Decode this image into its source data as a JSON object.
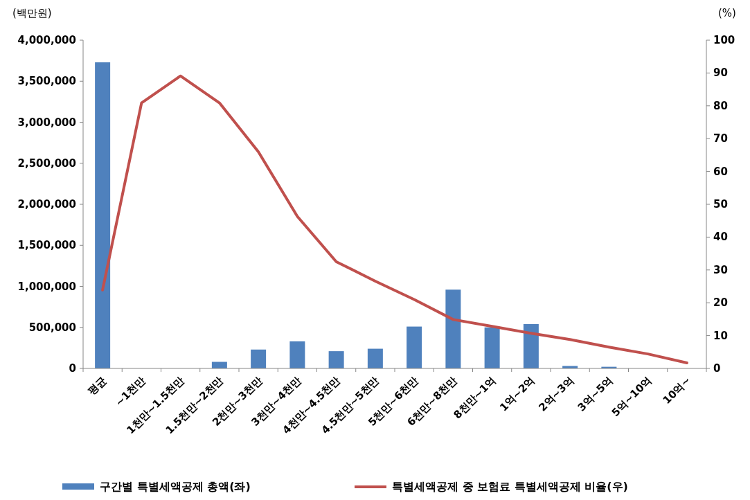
{
  "chart_data": {
    "type": "bar",
    "categories": [
      "평균",
      "~1천만",
      "1천만~1.5천만",
      "1.5천만~2천만",
      "2천만~3천만",
      "3천만~4천만",
      "4천만~4.5천만",
      "4.5천만~5천만",
      "5천만~6천만",
      "6천만~8천만",
      "8천만~1억",
      "1억~2억",
      "2억~3억",
      "3억~5억",
      "5억~10억",
      "10억~"
    ],
    "series": [
      {
        "name": "구간별 특별세액공제 총액(좌)",
        "color": "#4f81bd",
        "values": [
          3730000,
          0,
          0,
          80000,
          230000,
          330000,
          210000,
          240000,
          510000,
          960000,
          500000,
          540000,
          30000,
          20000,
          0,
          0
        ]
      },
      {
        "name": "특별세액공제 중 보험료 특별세액공제 비율(우)",
        "type": "line",
        "axis": "y2",
        "color": "#c0504d",
        "values": [
          23.9,
          80.9,
          89.1,
          80.9,
          66.0,
          46.3,
          32.5,
          26.6,
          21.0,
          14.9,
          12.8,
          10.7,
          8.8,
          6.5,
          4.4,
          1.7
        ]
      }
    ],
    "ylabel": "(백만원)",
    "y2label": "(%)",
    "ylim": [
      0,
      4000000
    ],
    "yticks": [
      0,
      {
        "value": 500000,
        "label": "500,000"
      },
      {
        "value": 1000000,
        "label": "1,000,000"
      },
      {
        "value": 1500000,
        "label": "1,500,000"
      },
      {
        "value": 2000000,
        "label": "2,000,000"
      },
      {
        "value": 2500000,
        "label": "2,500,000"
      },
      {
        "value": 3000000,
        "label": "3,000,000"
      },
      {
        "value": 3500000,
        "label": "3,500,000"
      },
      {
        "value": 4000000,
        "label": "4,000,000"
      }
    ],
    "y2lim": [
      0,
      100
    ],
    "y2ticks": [
      0,
      10,
      20,
      30,
      40,
      50,
      60,
      70,
      80,
      90,
      100
    ],
    "legend": "bottom",
    "grid": false
  }
}
